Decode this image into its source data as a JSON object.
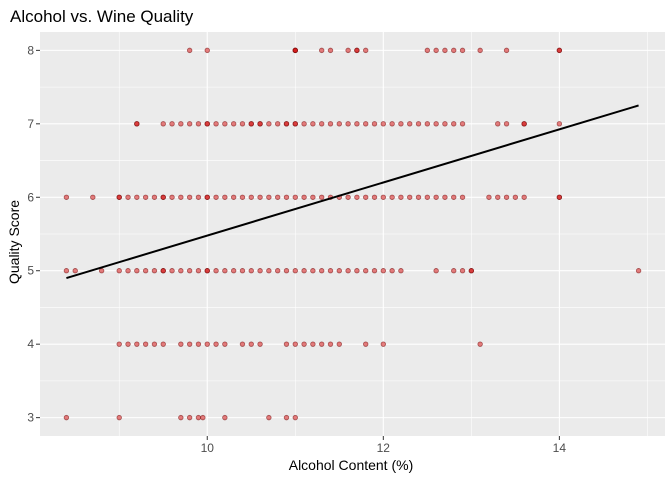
{
  "chart_data": {
    "type": "scatter",
    "title": "Alcohol vs. Wine Quality",
    "xlabel": "Alcohol Content (%)",
    "ylabel": "Quality Score",
    "xlim": [
      8.1,
      15.2
    ],
    "ylim": [
      2.75,
      8.25
    ],
    "x_ticks": [
      10,
      12,
      14
    ],
    "y_ticks": [
      3,
      4,
      5,
      6,
      7,
      8
    ],
    "grid": true,
    "point_color": "#cd0000",
    "line_color": "#000000",
    "panel_background": "#ebebeb",
    "points": [
      {
        "quality": 8,
        "alcohol": [
          9.8,
          10.0,
          11.0,
          11.0,
          11.0,
          11.3,
          11.4,
          11.6,
          11.7,
          11.7,
          11.8,
          12.5,
          12.6,
          12.7,
          12.8,
          12.9,
          13.1,
          13.4,
          14.0,
          14.0
        ]
      },
      {
        "quality": 7,
        "alcohol": [
          9.2,
          9.2,
          9.5,
          9.6,
          9.7,
          9.8,
          9.9,
          10.0,
          10.0,
          10.1,
          10.2,
          10.3,
          10.4,
          10.5,
          10.5,
          10.6,
          10.6,
          10.7,
          10.8,
          10.9,
          10.9,
          11.0,
          11.0,
          11.1,
          11.2,
          11.3,
          11.4,
          11.5,
          11.6,
          11.7,
          11.8,
          11.9,
          12.0,
          12.1,
          12.2,
          12.3,
          12.4,
          12.5,
          12.6,
          12.7,
          12.8,
          12.9,
          13.3,
          13.4,
          13.6,
          13.6,
          14.0
        ]
      },
      {
        "quality": 6,
        "alcohol": [
          8.4,
          8.7,
          9.0,
          9.0,
          9.1,
          9.2,
          9.3,
          9.4,
          9.5,
          9.5,
          9.6,
          9.7,
          9.8,
          9.9,
          10.0,
          10.0,
          10.1,
          10.2,
          10.3,
          10.4,
          10.5,
          10.6,
          10.7,
          10.8,
          10.9,
          11.0,
          11.1,
          11.2,
          11.3,
          11.4,
          11.5,
          11.6,
          11.7,
          11.8,
          11.9,
          12.0,
          12.1,
          12.2,
          12.3,
          12.4,
          12.5,
          12.6,
          12.7,
          12.8,
          12.9,
          13.2,
          13.3,
          13.4,
          13.5,
          13.6,
          14.0,
          14.0
        ]
      },
      {
        "quality": 5,
        "alcohol": [
          8.4,
          8.5,
          8.8,
          9.0,
          9.1,
          9.2,
          9.3,
          9.4,
          9.5,
          9.5,
          9.6,
          9.7,
          9.8,
          9.9,
          10.0,
          10.0,
          10.1,
          10.2,
          10.3,
          10.4,
          10.5,
          10.6,
          10.7,
          10.8,
          10.9,
          11.0,
          11.1,
          11.2,
          11.3,
          11.4,
          11.5,
          11.6,
          11.7,
          11.8,
          11.9,
          12.0,
          12.1,
          12.2,
          12.6,
          12.8,
          12.9,
          13.0,
          13.0,
          14.9
        ]
      },
      {
        "quality": 4,
        "alcohol": [
          9.0,
          9.1,
          9.2,
          9.3,
          9.4,
          9.5,
          9.7,
          9.8,
          9.9,
          10.0,
          10.1,
          10.2,
          10.4,
          10.5,
          10.6,
          10.9,
          11.0,
          11.1,
          11.2,
          11.3,
          11.4,
          11.5,
          11.8,
          12.0,
          13.1
        ]
      },
      {
        "quality": 3,
        "alcohol": [
          8.4,
          9.0,
          9.7,
          9.8,
          9.9,
          9.95,
          10.2,
          10.7,
          10.9,
          11.0
        ]
      }
    ],
    "trend_line": {
      "x": [
        8.4,
        14.9
      ],
      "y": [
        4.9,
        7.25
      ]
    }
  }
}
